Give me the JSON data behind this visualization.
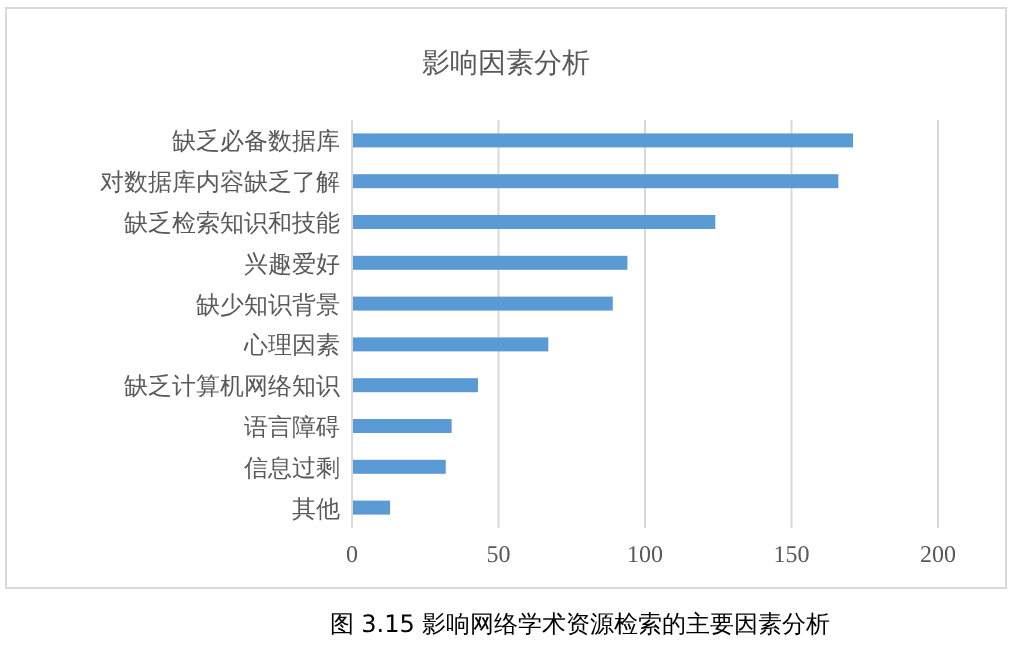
{
  "chart_data": {
    "type": "bar",
    "orientation": "horizontal",
    "title": "影响因素分析",
    "categories": [
      "缺乏必备数据库",
      "对数据库内容缺乏了解",
      "缺乏检索知识和技能",
      "兴趣爱好",
      "缺少知识背景",
      "心理因素",
      "缺乏计算机网络知识",
      "语言障碍",
      "信息过剩",
      "其他"
    ],
    "values": [
      171,
      166,
      124,
      94,
      89,
      67,
      43,
      34,
      32,
      13
    ],
    "color": "#5b9bd5",
    "xlim": [
      0,
      200
    ],
    "xticks": [
      0,
      50,
      100,
      150,
      200
    ],
    "grid": "x",
    "annotations": [
      "图 3.15  影响网络学术资源检索的主要因素分析"
    ]
  }
}
